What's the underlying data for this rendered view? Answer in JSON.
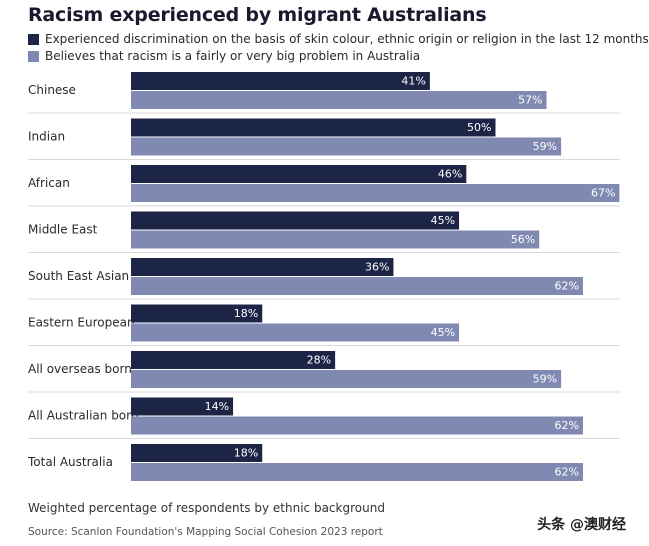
{
  "title": "Racism experienced by migrant Australians",
  "footnote": "Weighted percentage of respondents by ethnic background",
  "source": "Source: Scanlon Foundation's Mapping Social Cohesion 2023 report",
  "watermark": "头条 @澳财经",
  "colors": {
    "series_dark": "#1d2547",
    "series_light": "#8089b2",
    "separator": "#d9d9d9"
  },
  "chart_data": {
    "type": "bar",
    "orientation": "horizontal",
    "title": "Racism experienced by migrant Australians",
    "xlim": [
      0,
      70
    ],
    "grid": false,
    "legend_position": "top-left",
    "categories": [
      "Chinese",
      "Indian",
      "African",
      "Middle East",
      "South East Asian",
      "Eastern European",
      "All overseas born",
      "All Australian born",
      "Total Australia"
    ],
    "series": [
      {
        "name": "Experienced discrimination on the basis of skin colour, ethnic origin or religion in the last 12 months",
        "values": [
          41,
          50,
          46,
          45,
          36,
          18,
          28,
          14,
          18
        ]
      },
      {
        "name": "Believes that racism is a fairly or very big problem in Australia",
        "values": [
          57,
          59,
          67,
          56,
          62,
          45,
          59,
          62,
          62
        ]
      }
    ],
    "value_suffix": "%"
  }
}
